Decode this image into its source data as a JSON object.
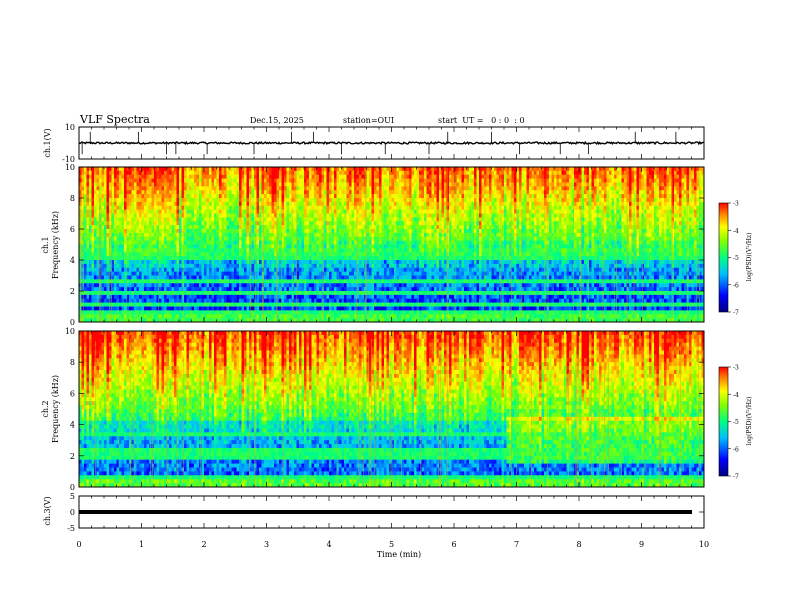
{
  "header": {
    "title": "VLF Spectra",
    "date": "Dec.15, 2025",
    "station": "station=OUI",
    "start": "start  UT =   0 : 0  : 0"
  },
  "chart_data": [
    {
      "type": "line",
      "name": "ch1-waveform",
      "ylabel": "ch.1(V)",
      "ylim": [
        -10,
        10
      ],
      "yticks": [
        "10",
        "-10"
      ],
      "xlim": [
        0,
        10
      ],
      "baseline": 0,
      "spikes_min": [
        0.05,
        0.18,
        0.95,
        1.4,
        1.55,
        2.05,
        2.8,
        3.4,
        3.75,
        4.2,
        4.9,
        5.6,
        5.9,
        6.6,
        7.05,
        7.7,
        8.15,
        8.9,
        9.55
      ]
    },
    {
      "type": "heatmap",
      "name": "ch1-spectrogram",
      "ylabel_top": "ch.1",
      "ylabel": "Frequency (kHz)",
      "ylim": [
        0,
        10
      ],
      "yticks": [
        "0",
        "2",
        "4",
        "6",
        "8",
        "10"
      ],
      "xlim": [
        0,
        10
      ],
      "colorbar": {
        "label": "log(PSD)(V²/Hz)",
        "range": [
          -7,
          -3
        ],
        "ticks": [
          "-3",
          "-4",
          "-5",
          "-6",
          "-7"
        ]
      }
    },
    {
      "type": "heatmap",
      "name": "ch2-spectrogram",
      "ylabel_top": "ch.2",
      "ylabel": "Frequency (kHz)",
      "ylim": [
        0,
        10
      ],
      "yticks": [
        "0",
        "2",
        "4",
        "6",
        "8",
        "10"
      ],
      "xlim": [
        0,
        10
      ],
      "colorbar": {
        "label": "log(PSD)(V²/Hz)",
        "range": [
          -7,
          -3
        ],
        "ticks": [
          "-3",
          "-4",
          "-5",
          "-6",
          "-7"
        ]
      }
    },
    {
      "type": "line",
      "name": "ch3-waveform",
      "ylabel": "ch.3(V)",
      "ylim": [
        -5,
        5
      ],
      "yticks": [
        "5",
        "0",
        "-5"
      ],
      "xlim": [
        0,
        10
      ],
      "baseline": 0
    }
  ],
  "xaxis": {
    "label": "Time (min)",
    "ticks": [
      "0",
      "1",
      "2",
      "3",
      "4",
      "5",
      "6",
      "7",
      "8",
      "9",
      "10"
    ]
  },
  "colors": {
    "colormap": [
      "#00007f",
      "#0000ff",
      "#00bfff",
      "#00ff80",
      "#80ff00",
      "#ffff00",
      "#ff8000",
      "#ff0000"
    ]
  }
}
